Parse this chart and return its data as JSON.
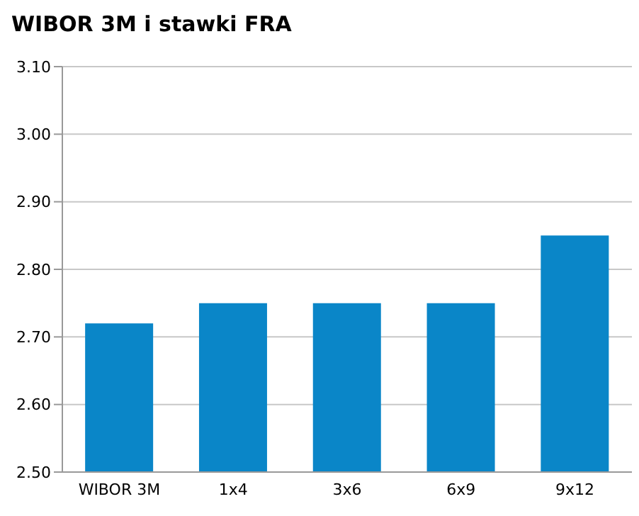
{
  "chart_data": {
    "type": "bar",
    "title": "WIBOR 3M i stawki FRA",
    "categories": [
      "WIBOR 3M",
      "1x4",
      "3x6",
      "6x9",
      "9x12"
    ],
    "values": [
      2.72,
      2.75,
      2.75,
      2.75,
      2.85
    ],
    "color": "#0a86c8",
    "ylim": [
      2.5,
      3.1
    ],
    "yticks": [
      {
        "value": 2.5,
        "label": "2.50"
      },
      {
        "value": 2.6,
        "label": "2.60"
      },
      {
        "value": 2.7,
        "label": "2.70"
      },
      {
        "value": 2.8,
        "label": "2.80"
      },
      {
        "value": 2.9,
        "label": "2.90"
      },
      {
        "value": 3.0,
        "label": "3.00"
      },
      {
        "value": 3.1,
        "label": "3.10"
      }
    ],
    "grid": "y",
    "legend": false
  }
}
